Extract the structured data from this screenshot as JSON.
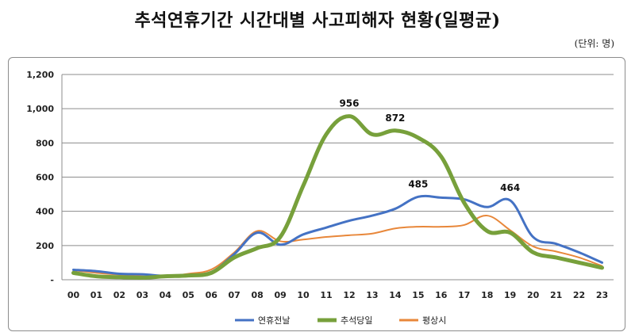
{
  "chart_data": {
    "type": "line",
    "title": "추석연휴기간 시간대별 사고피해자 현황(일평균)",
    "unit": "(단위: 명)",
    "categories": [
      "00",
      "01",
      "02",
      "03",
      "04",
      "05",
      "06",
      "07",
      "08",
      "09",
      "10",
      "11",
      "12",
      "13",
      "14",
      "15",
      "16",
      "17",
      "18",
      "19",
      "20",
      "21",
      "22",
      "23"
    ],
    "ylim": [
      0,
      1200
    ],
    "y_ticks": [
      {
        "value": 0,
        "label": "-"
      },
      {
        "value": 200,
        "label": "200"
      },
      {
        "value": 400,
        "label": "400"
      },
      {
        "value": 600,
        "label": "600"
      },
      {
        "value": 800,
        "label": "800"
      },
      {
        "value": 1000,
        "label": "1,000"
      },
      {
        "value": 1200,
        "label": "1,200"
      }
    ],
    "grid": "horizontal",
    "legend_position": "bottom",
    "series": [
      {
        "name": "연휴전날",
        "color": "#4472c4",
        "width": 3,
        "values": [
          58,
          50,
          35,
          32,
          22,
          28,
          45,
          150,
          275,
          205,
          265,
          305,
          345,
          375,
          415,
          485,
          480,
          470,
          425,
          464,
          250,
          210,
          160,
          100
        ]
      },
      {
        "name": "추석당일",
        "color": "#77a03b",
        "width": 5,
        "values": [
          40,
          20,
          15,
          12,
          20,
          25,
          40,
          130,
          185,
          250,
          550,
          850,
          956,
          850,
          872,
          830,
          720,
          450,
          285,
          275,
          160,
          130,
          100,
          70
        ]
      },
      {
        "name": "평상시",
        "color": "#e8873a",
        "width": 2,
        "values": [
          55,
          40,
          30,
          20,
          20,
          35,
          60,
          160,
          285,
          225,
          235,
          250,
          260,
          270,
          300,
          310,
          310,
          320,
          375,
          290,
          195,
          165,
          130,
          80
        ]
      }
    ],
    "annotations": [
      {
        "series": 1,
        "index": 12,
        "label": "956"
      },
      {
        "series": 1,
        "index": 14,
        "label": "872"
      },
      {
        "series": 0,
        "index": 15,
        "label": "485"
      },
      {
        "series": 0,
        "index": 19,
        "label": "464"
      }
    ]
  }
}
